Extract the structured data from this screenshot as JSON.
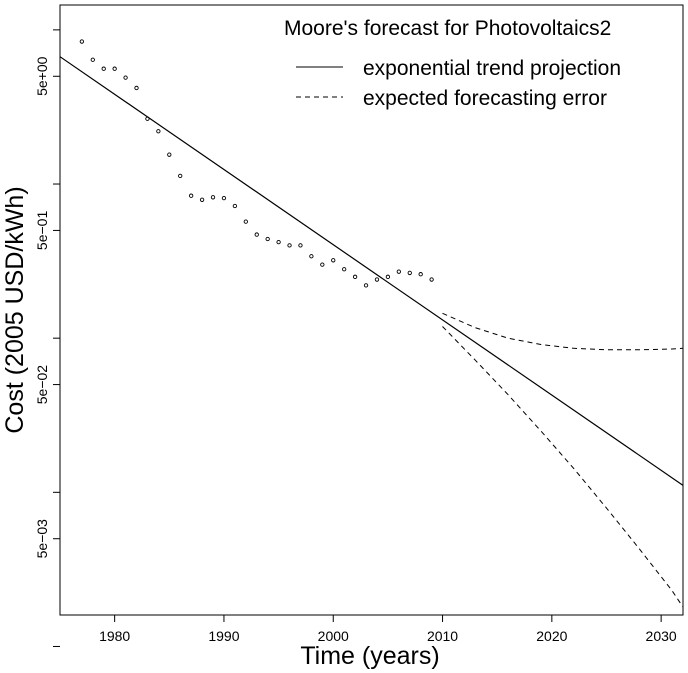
{
  "chart_data": {
    "type": "scatter",
    "title": "",
    "xlabel": "Time (years)",
    "ylabel": "Cost (2005 USD/kWh)",
    "y_scale": "log",
    "xlim": [
      1975,
      2032
    ],
    "ylim": [
      0.0016,
      14.5
    ],
    "grid": false,
    "x_ticks": [
      1980,
      1990,
      2000,
      2010,
      2020,
      2030
    ],
    "x_tick_labels": [
      "1980",
      "1990",
      "2000",
      "2010",
      "2020",
      "2030"
    ],
    "y_major_ticks": [
      5,
      0.5,
      0.05,
      0.005
    ],
    "y_major_tick_labels": [
      "5e+00",
      "5e−01",
      "5e−02",
      "5e−03"
    ],
    "y_minor_ticks": [
      10,
      1,
      0.1,
      0.01,
      0.001
    ],
    "legend": {
      "title": "Moore's forecast for Photovoltaics2",
      "position": "top-right",
      "entries": [
        {
          "label": "exponential trend projection",
          "style": "solid"
        },
        {
          "label": "expected forecasting error",
          "style": "dashed"
        }
      ]
    },
    "observations": {
      "x": [
        1977,
        1978,
        1979,
        1980,
        1981,
        1982,
        1983,
        1984,
        1985,
        1986,
        1987,
        1988,
        1989,
        1990,
        1991,
        1992,
        1993,
        1994,
        1995,
        1996,
        1997,
        1998,
        1999,
        2000,
        2001,
        2002,
        2003,
        2004,
        2005,
        2006,
        2007,
        2008,
        2009
      ],
      "y": [
        8.4,
        6.4,
        5.6,
        5.6,
        4.9,
        4.2,
        2.65,
        2.2,
        1.55,
        1.13,
        0.84,
        0.79,
        0.82,
        0.81,
        0.72,
        0.57,
        0.47,
        0.44,
        0.42,
        0.4,
        0.4,
        0.34,
        0.3,
        0.32,
        0.28,
        0.25,
        0.22,
        0.24,
        0.25,
        0.27,
        0.265,
        0.26,
        0.24
      ]
    },
    "trend": {
      "x": [
        1975,
        2032
      ],
      "y": [
        6.7,
        0.0111
      ]
    },
    "error_upper": {
      "x": [
        2010,
        2013,
        2016,
        2019,
        2022,
        2025,
        2028,
        2031,
        2032
      ],
      "y": [
        0.145,
        0.117,
        0.1,
        0.091,
        0.086,
        0.084,
        0.084,
        0.085,
        0.086
      ]
    },
    "error_lower": {
      "x": [
        2010,
        2013,
        2016,
        2019,
        2022,
        2025,
        2028,
        2031,
        2032
      ],
      "y": [
        0.119,
        0.072,
        0.043,
        0.025,
        0.0143,
        0.0079,
        0.0043,
        0.0023,
        0.0018
      ]
    }
  }
}
